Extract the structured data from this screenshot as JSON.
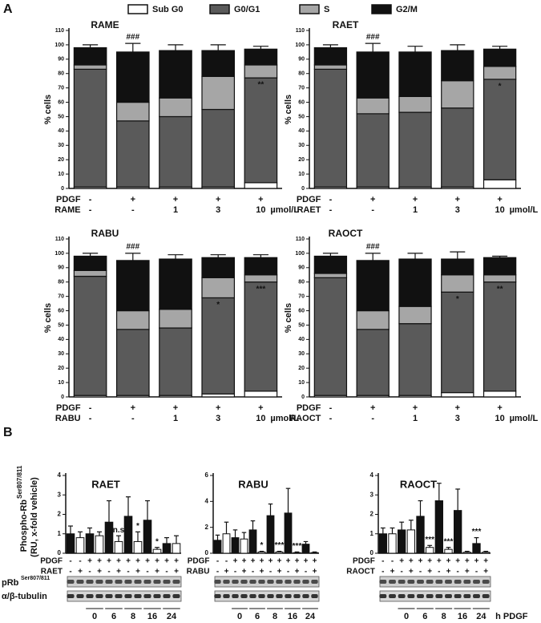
{
  "panel_labels": [
    "A",
    "B"
  ],
  "panel_b": {
    "ylabel": "Phospho-Rb",
    "ylabel_sup": "Ser807/811",
    "ylabel_sub": "(RU, x-fold vehicle)",
    "blot_labels": [
      "pRb",
      "α/β-tubulin"
    ],
    "blot_sup": "Ser807/811",
    "time_points": [
      "0",
      "6",
      "8",
      "16",
      "24"
    ],
    "time_unit": "h PDGF"
  },
  "chart_data": [
    {
      "type": "stacked_bar",
      "title": "RAME",
      "ylabel": "% cells",
      "ylim": [
        0,
        110
      ],
      "yticks": [
        0,
        10,
        20,
        30,
        40,
        50,
        60,
        70,
        80,
        90,
        100,
        110
      ],
      "series": [
        {
          "name": "Sub G0",
          "color": "#ffffff",
          "values": [
            1,
            1,
            1,
            1,
            4
          ]
        },
        {
          "name": "G0/G1",
          "color": "#5a5a5a",
          "values": [
            82,
            46,
            49,
            54,
            73
          ],
          "errors": [
            1,
            9,
            4,
            2,
            5
          ]
        },
        {
          "name": "S",
          "color": "#a6a6a6",
          "values": [
            3,
            13,
            13,
            23,
            9
          ],
          "errors": [
            1,
            5,
            2,
            3,
            3
          ]
        },
        {
          "name": "G2/M",
          "color": "#111111",
          "values": [
            12,
            35,
            33,
            18,
            11
          ],
          "errors": [
            2,
            6,
            4,
            4,
            2
          ]
        }
      ],
      "bar_labels": [
        null,
        "###",
        null,
        null,
        "**"
      ],
      "conditions": [
        {
          "label": "PDGF",
          "values": [
            "-",
            "+",
            "+",
            "+",
            "+"
          ]
        },
        {
          "label": "RAME",
          "values": [
            "-",
            "-",
            "1",
            "3",
            "10"
          ]
        }
      ],
      "unit": "µmol/L"
    },
    {
      "type": "stacked_bar",
      "title": "RAET",
      "ylabel": "% cells",
      "ylim": [
        0,
        110
      ],
      "yticks": [
        0,
        10,
        20,
        30,
        40,
        50,
        60,
        70,
        80,
        90,
        100,
        110
      ],
      "series": [
        {
          "name": "Sub G0",
          "color": "#ffffff",
          "values": [
            1,
            1,
            1,
            1,
            6
          ]
        },
        {
          "name": "G0/G1",
          "color": "#5a5a5a",
          "values": [
            82,
            51,
            52,
            55,
            70
          ],
          "errors": [
            2,
            6,
            5,
            3,
            4
          ]
        },
        {
          "name": "S",
          "color": "#a6a6a6",
          "values": [
            3,
            11,
            11,
            19,
            9
          ],
          "errors": [
            1,
            5,
            4,
            6,
            3
          ]
        },
        {
          "name": "G2/M",
          "color": "#111111",
          "values": [
            12,
            32,
            31,
            21,
            12
          ],
          "errors": [
            2,
            6,
            4,
            4,
            2
          ]
        }
      ],
      "bar_labels": [
        null,
        "###",
        null,
        null,
        "*"
      ],
      "conditions": [
        {
          "label": "PDGF",
          "values": [
            "-",
            "+",
            "+",
            "+",
            "+"
          ]
        },
        {
          "label": "RAET",
          "values": [
            "-",
            "-",
            "1",
            "3",
            "10"
          ]
        }
      ],
      "unit": "µmol/L"
    },
    {
      "type": "stacked_bar",
      "title": "RABU",
      "ylabel": "% cells",
      "ylim": [
        0,
        110
      ],
      "yticks": [
        0,
        10,
        20,
        30,
        40,
        50,
        60,
        70,
        80,
        90,
        100,
        110
      ],
      "series": [
        {
          "name": "Sub G0",
          "color": "#ffffff",
          "values": [
            1,
            1,
            1,
            2,
            4
          ]
        },
        {
          "name": "G0/G1",
          "color": "#5a5a5a",
          "values": [
            83,
            46,
            47,
            67,
            76
          ],
          "errors": [
            1,
            9,
            6,
            4,
            2
          ]
        },
        {
          "name": "S",
          "color": "#a6a6a6",
          "values": [
            4,
            13,
            13,
            14,
            5
          ],
          "errors": [
            1,
            4,
            3,
            3,
            2
          ]
        },
        {
          "name": "G2/M",
          "color": "#111111",
          "values": [
            10,
            35,
            35,
            14,
            12
          ],
          "errors": [
            2,
            5,
            3,
            2,
            2
          ]
        }
      ],
      "bar_labels": [
        null,
        "###",
        null,
        "*",
        "***"
      ],
      "conditions": [
        {
          "label": "PDGF",
          "values": [
            "-",
            "+",
            "+",
            "+",
            "+"
          ]
        },
        {
          "label": "RABU",
          "values": [
            "-",
            "-",
            "1",
            "3",
            "10"
          ]
        }
      ],
      "unit": "µmol/L"
    },
    {
      "type": "stacked_bar",
      "title": "RAOCT",
      "ylabel": "% cells",
      "ylim": [
        0,
        110
      ],
      "yticks": [
        0,
        10,
        20,
        30,
        40,
        50,
        60,
        70,
        80,
        90,
        100,
        110
      ],
      "series": [
        {
          "name": "Sub G0",
          "color": "#ffffff",
          "values": [
            1,
            1,
            1,
            3,
            4
          ]
        },
        {
          "name": "G0/G1",
          "color": "#5a5a5a",
          "values": [
            82,
            46,
            50,
            70,
            76
          ],
          "errors": [
            1,
            9,
            5,
            5,
            3
          ]
        },
        {
          "name": "S",
          "color": "#a6a6a6",
          "values": [
            3,
            13,
            12,
            12,
            5
          ],
          "errors": [
            1,
            4,
            3,
            6,
            2
          ]
        },
        {
          "name": "G2/M",
          "color": "#111111",
          "values": [
            12,
            35,
            33,
            11,
            12
          ],
          "errors": [
            2,
            5,
            4,
            5,
            1
          ]
        }
      ],
      "bar_labels": [
        null,
        "###",
        null,
        "*",
        "**"
      ],
      "conditions": [
        {
          "label": "PDGF",
          "values": [
            "-",
            "+",
            "+",
            "+",
            "+"
          ]
        },
        {
          "label": "RAOCT",
          "values": [
            "-",
            "-",
            "1",
            "3",
            "10"
          ]
        }
      ],
      "unit": "µmol/L"
    },
    {
      "type": "bar",
      "title": "RAET",
      "ylim": [
        0,
        4
      ],
      "yticks": [
        0,
        1,
        2,
        3,
        4
      ],
      "values": [
        1.0,
        0.8,
        1.0,
        0.9,
        1.6,
        0.6,
        1.9,
        0.6,
        1.7,
        0.2,
        0.5,
        0.5
      ],
      "errors": [
        0.4,
        0.3,
        0.3,
        0.2,
        1.1,
        0.3,
        1.0,
        0.5,
        1.0,
        0.1,
        0.3,
        0.4
      ],
      "colors": [
        "#111111",
        "#ffffff",
        "#111111",
        "#ffffff",
        "#111111",
        "#ffffff",
        "#111111",
        "#ffffff",
        "#111111",
        "#ffffff",
        "#111111",
        "#ffffff"
      ],
      "bar_labels": [
        null,
        null,
        null,
        null,
        null,
        "n.s",
        null,
        "*",
        null,
        "*",
        null,
        null
      ],
      "conditions": [
        {
          "label": "PDGF",
          "values": [
            "-",
            "-",
            "+",
            "+",
            "+",
            "+",
            "+",
            "+",
            "+",
            "+",
            "+",
            "+"
          ]
        },
        {
          "label": "RAET",
          "values": [
            "-",
            "+",
            "-",
            "+",
            "-",
            "+",
            "-",
            "+",
            "-",
            "+",
            "-",
            "+"
          ]
        }
      ]
    },
    {
      "type": "bar",
      "title": "RABU",
      "ylim": [
        0,
        6
      ],
      "yticks": [
        0,
        2,
        4,
        6
      ],
      "values": [
        1.0,
        1.5,
        1.2,
        1.1,
        1.8,
        0.1,
        2.9,
        0.1,
        3.1,
        0.05,
        0.7,
        0.05
      ],
      "errors": [
        0.4,
        0.9,
        0.6,
        0.5,
        0.7,
        0.05,
        0.9,
        0.05,
        1.9,
        0.05,
        0.2,
        0.05
      ],
      "colors": [
        "#111111",
        "#ffffff",
        "#111111",
        "#ffffff",
        "#111111",
        "#ffffff",
        "#111111",
        "#ffffff",
        "#111111",
        "#ffffff",
        "#111111",
        "#ffffff"
      ],
      "bar_labels": [
        null,
        null,
        null,
        null,
        null,
        "*",
        null,
        "***",
        null,
        "***",
        null,
        null
      ],
      "conditions": [
        {
          "label": "PDGF",
          "values": [
            "-",
            "-",
            "+",
            "+",
            "+",
            "+",
            "+",
            "+",
            "+",
            "+",
            "+",
            "+"
          ]
        },
        {
          "label": "RABU",
          "values": [
            "-",
            "+",
            "-",
            "+",
            "-",
            "+",
            "-",
            "+",
            "-",
            "+",
            "-",
            "+"
          ]
        }
      ]
    },
    {
      "type": "bar",
      "title": "RAOCT",
      "ylim": [
        0,
        4
      ],
      "yticks": [
        0,
        1,
        2,
        3,
        4
      ],
      "values": [
        1.0,
        1.0,
        1.2,
        1.2,
        1.9,
        0.3,
        2.7,
        0.2,
        2.2,
        0.05,
        0.5,
        0.05
      ],
      "errors": [
        0.3,
        0.3,
        0.4,
        0.5,
        0.8,
        0.1,
        0.9,
        0.1,
        1.1,
        0.05,
        0.3,
        0.05
      ],
      "colors": [
        "#111111",
        "#ffffff",
        "#111111",
        "#ffffff",
        "#111111",
        "#ffffff",
        "#111111",
        "#ffffff",
        "#111111",
        "#ffffff",
        "#111111",
        "#ffffff"
      ],
      "bar_labels": [
        null,
        null,
        null,
        null,
        null,
        "***",
        null,
        "***",
        null,
        null,
        "***",
        null
      ],
      "conditions": [
        {
          "label": "PDGF",
          "values": [
            "-",
            "-",
            "+",
            "+",
            "+",
            "+",
            "+",
            "+",
            "+",
            "+",
            "+",
            "+"
          ]
        },
        {
          "label": "RAOCT",
          "values": [
            "-",
            "+",
            "-",
            "+",
            "-",
            "+",
            "-",
            "+",
            "-",
            "+",
            "-",
            "+"
          ]
        }
      ]
    }
  ]
}
